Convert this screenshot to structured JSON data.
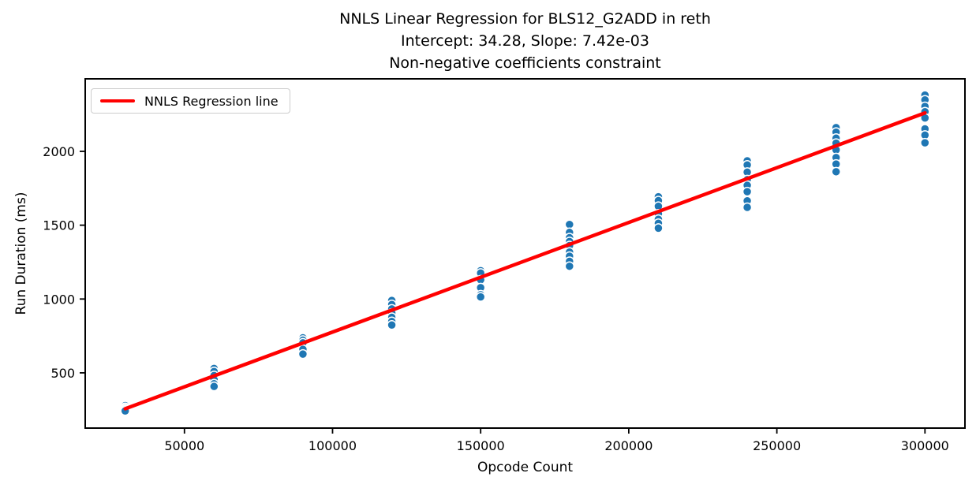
{
  "figure": {
    "background": "#ffffff"
  },
  "chart_data": {
    "type": "scatter",
    "title": "NNLS Linear Regression for BLS12_G2ADD in reth\nIntercept: 34.28, Slope: 7.42e-03\nNon-negative coefficients constraint",
    "title_lines": [
      "NNLS Linear Regression for BLS12_G2ADD in reth",
      "Intercept: 34.28, Slope: 7.42e-03",
      "Non-negative coefficients constraint"
    ],
    "xlabel": "Opcode Count",
    "ylabel": "Run Duration (ms)",
    "xlim": [
      16500,
      313500
    ],
    "ylim": [
      126,
      2491
    ],
    "xticks": [
      50000,
      100000,
      150000,
      200000,
      250000,
      300000
    ],
    "yticks": [
      500,
      1000,
      1500,
      2000
    ],
    "grid": false,
    "legend": {
      "label": "NNLS Regression line",
      "position": "upper left"
    },
    "regression": {
      "intercept": 34.28,
      "slope": 0.00742,
      "slope_display": "7.42e-03",
      "x_start": 30000,
      "x_end": 300000,
      "color": "#ff0000"
    },
    "scatter_color": "#1f77b4",
    "scatter_edge_color": "#ffffff",
    "axis_color": "#000000",
    "points": [
      {
        "x": 30000,
        "y": [
          278,
          266,
          258,
          250,
          242
        ]
      },
      {
        "x": 60000,
        "y": [
          530,
          509,
          482,
          454,
          426,
          408
        ]
      },
      {
        "x": 90000,
        "y": [
          737,
          721,
          703,
          659,
          627
        ]
      },
      {
        "x": 120000,
        "y": [
          990,
          963,
          933,
          905,
          876,
          848,
          824
        ]
      },
      {
        "x": 150000,
        "y": [
          1192,
          1176,
          1130,
          1077,
          1029,
          1014
        ]
      },
      {
        "x": 180000,
        "y": [
          1505,
          1451,
          1415,
          1389,
          1362,
          1318,
          1290,
          1255,
          1222
        ]
      },
      {
        "x": 210000,
        "y": [
          1692,
          1666,
          1628,
          1577,
          1540,
          1513,
          1480
        ]
      },
      {
        "x": 240000,
        "y": [
          1936,
          1908,
          1859,
          1808,
          1770,
          1727,
          1665,
          1621
        ]
      },
      {
        "x": 270000,
        "y": [
          2161,
          2130,
          2089,
          2055,
          2010,
          1958,
          1914,
          1862
        ]
      },
      {
        "x": 300000,
        "y": [
          2381,
          2348,
          2304,
          2268,
          2226,
          2152,
          2110,
          2058
        ]
      }
    ]
  }
}
